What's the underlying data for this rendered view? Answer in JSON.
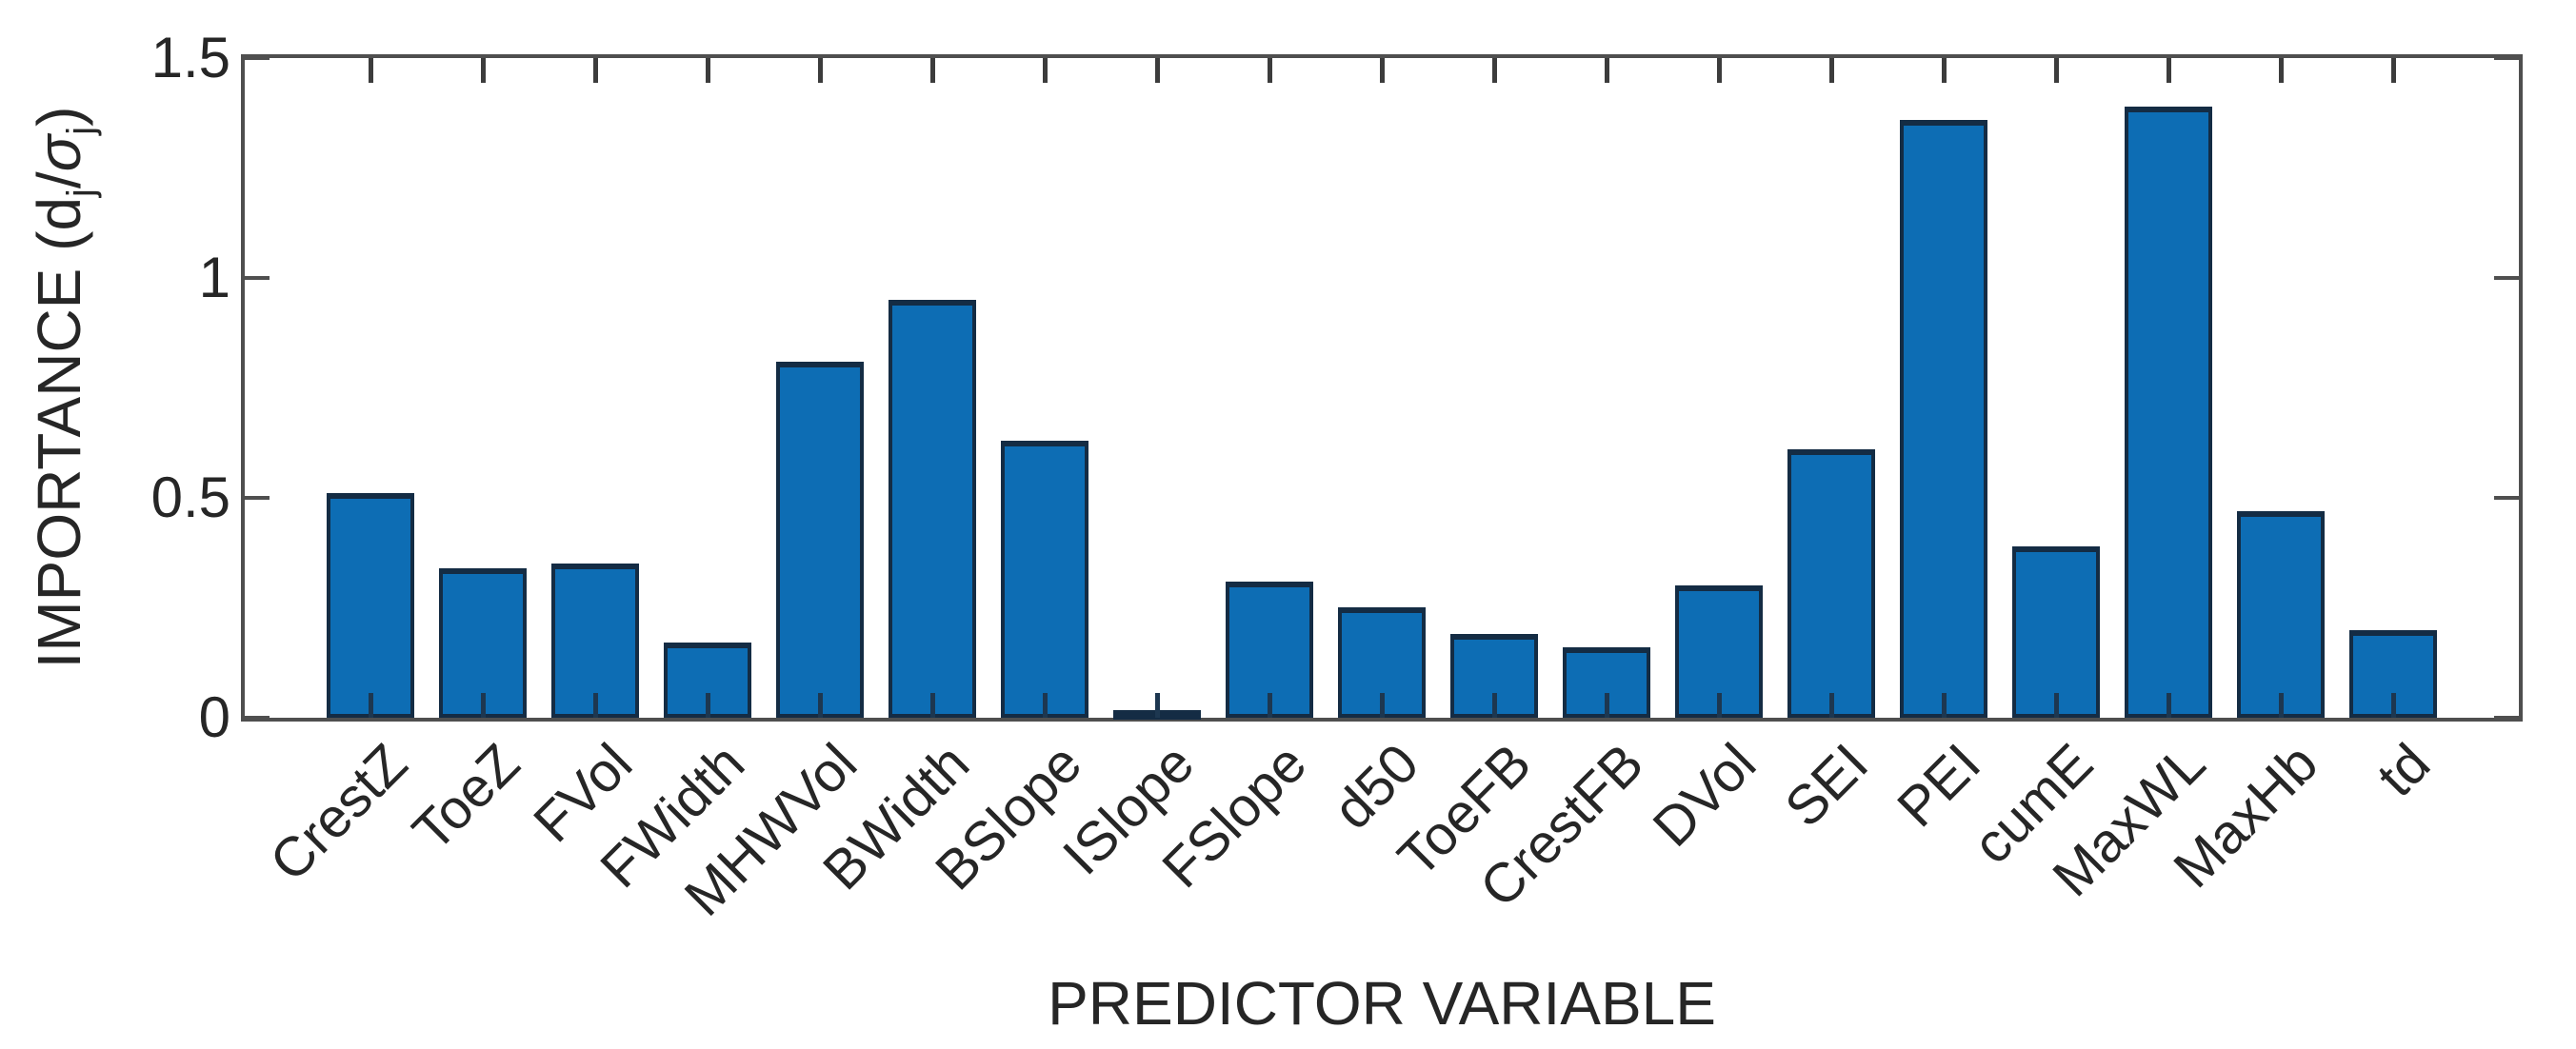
{
  "figure": {
    "background": "#ffffff",
    "axis_color": "#4f4f4f",
    "text_color": "#262626"
  },
  "chart_data": {
    "type": "bar",
    "title": "",
    "xlabel": "PREDICTOR VARIABLE",
    "ylabel": "IMPORTANCE (dj/σj)",
    "ylabel_parts": {
      "p1": "IMPORTANCE (d",
      "sub1": "j",
      "slash": "/",
      "sigma": "σ",
      "sub2": "j",
      "close": ")"
    },
    "categories": [
      "CrestZ",
      "ToeZ",
      "FVol",
      "FWidth",
      "MHWVol",
      "BWidth",
      "BSlope",
      "ISlope",
      "FSlope",
      "d50",
      "ToeFB",
      "CrestFB",
      "DVol",
      "SEI",
      "PEI",
      "cumE",
      "MaxWL",
      "MaxHb",
      "td"
    ],
    "values": [
      0.51,
      0.34,
      0.35,
      0.17,
      0.81,
      0.95,
      0.63,
      0.01,
      0.31,
      0.25,
      0.19,
      0.16,
      0.3,
      0.61,
      1.36,
      0.39,
      1.39,
      0.47,
      0.2
    ],
    "ylim": [
      0,
      1.5
    ],
    "yticks": [
      0,
      0.5,
      1,
      1.5
    ],
    "ytick_labels": [
      "0",
      "0.5",
      "1",
      "1.5"
    ],
    "bar_color": "#0d6db4",
    "bar_edge_color": "#142c44",
    "grid": false,
    "legend": null
  }
}
